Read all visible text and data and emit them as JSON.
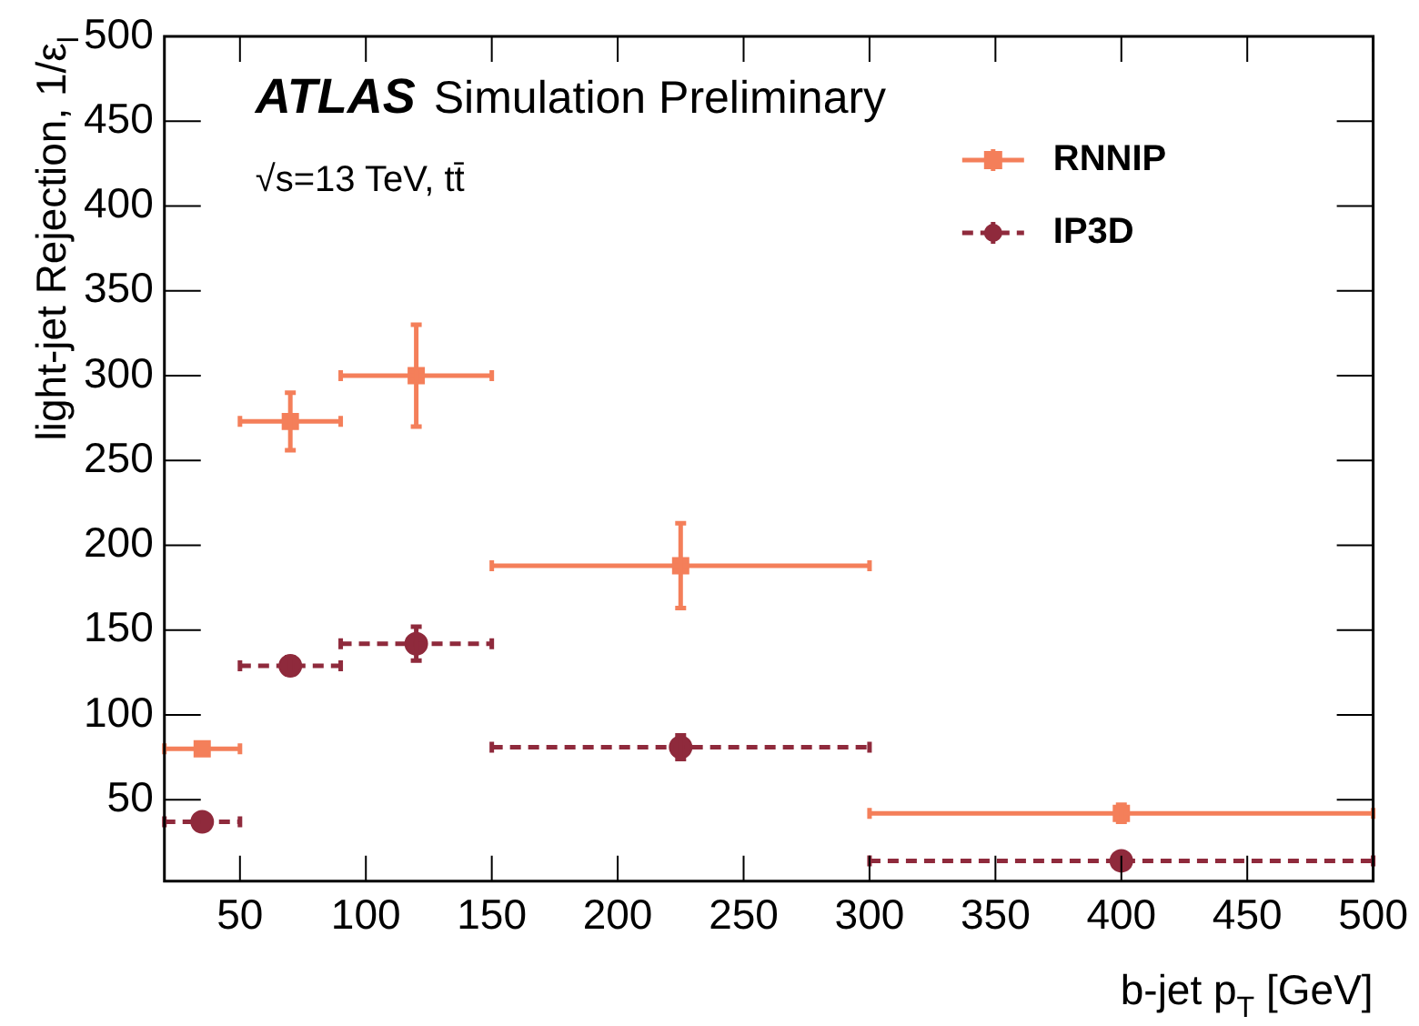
{
  "chart_data": {
    "type": "scatter",
    "xlabel": "b-jet p$_{T}$ [GeV]",
    "ylabel": "light-jet Rejection, 1/ε$_{l}$",
    "annotations": [
      "ATLAS",
      "Simulation Preliminary",
      "√s=13 TeV, tt̄"
    ],
    "x": [
      35,
      70,
      120,
      225,
      400
    ],
    "series": [
      {
        "name": "RNNIP",
        "color": "#f47f5a",
        "marker": "square",
        "line_style": "solid",
        "values": [
          80,
          273,
          300,
          188,
          42
        ],
        "errors": [
          null,
          17,
          30,
          25,
          5
        ],
        "xerrors": [
          15,
          20,
          30,
          75,
          100
        ]
      },
      {
        "name": "IP3D",
        "color": "#8f2a3c",
        "marker": "circle",
        "line_style": "dashed",
        "values": [
          37,
          129,
          142,
          81,
          14
        ],
        "errors": [
          null,
          5,
          10,
          7,
          null
        ],
        "xerrors": [
          15,
          20,
          30,
          75,
          100
        ]
      }
    ],
    "xlim": [
      20,
      500
    ],
    "ylim": [
      2,
      500
    ],
    "xticks": [
      50,
      100,
      150,
      200,
      250,
      300,
      350,
      400,
      450,
      500
    ],
    "yticks": [
      50,
      100,
      150,
      200,
      250,
      300,
      350,
      400,
      450,
      500
    ],
    "legend": "top right"
  }
}
